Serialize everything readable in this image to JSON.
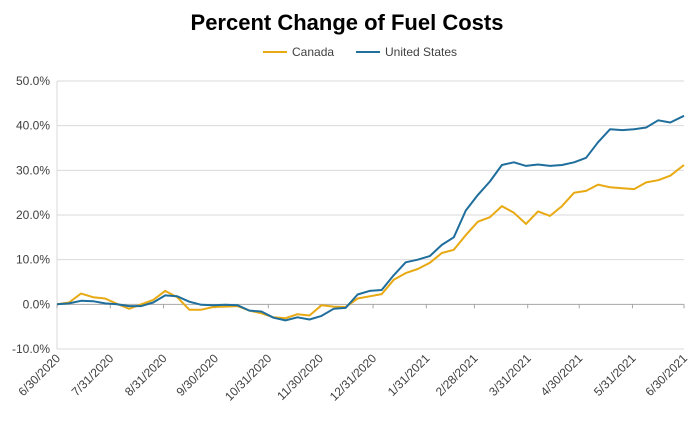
{
  "chart_data": {
    "type": "line",
    "title": "Percent Change of Fuel Costs",
    "xlabel": "",
    "ylabel": "",
    "ylim": [
      -10,
      50
    ],
    "y_ticks": [
      "-10.0%",
      "0.0%",
      "10.0%",
      "20.0%",
      "30.0%",
      "40.0%",
      "50.0%"
    ],
    "x_start": "2020-06-30",
    "x_end": "2021-06-30",
    "x_tick_labels": [
      "6/30/2020",
      "7/31/2020",
      "8/31/2020",
      "9/30/2020",
      "10/31/2020",
      "11/30/2020",
      "12/31/2020",
      "1/31/2021",
      "2/28/2021",
      "3/31/2021",
      "4/30/2021",
      "5/31/2021",
      "6/30/2021"
    ],
    "legend_position": "top",
    "grid": true,
    "series": [
      {
        "name": "Canada",
        "color": "#E8A912",
        "points": [
          [
            "2020-06-30",
            0.0
          ],
          [
            "2020-07-07",
            0.4
          ],
          [
            "2020-07-14",
            2.4
          ],
          [
            "2020-07-21",
            1.6
          ],
          [
            "2020-07-28",
            1.3
          ],
          [
            "2020-08-04",
            0.1
          ],
          [
            "2020-08-11",
            -1.0
          ],
          [
            "2020-08-18",
            0.0
          ],
          [
            "2020-08-25",
            1.0
          ],
          [
            "2020-09-01",
            3.0
          ],
          [
            "2020-09-08",
            1.6
          ],
          [
            "2020-09-15",
            -1.2
          ],
          [
            "2020-09-22",
            -1.2
          ],
          [
            "2020-09-29",
            -0.6
          ],
          [
            "2020-10-06",
            -0.5
          ],
          [
            "2020-10-13",
            -0.4
          ],
          [
            "2020-10-20",
            -1.4
          ],
          [
            "2020-10-27",
            -2.0
          ],
          [
            "2020-11-03",
            -2.9
          ],
          [
            "2020-11-10",
            -3.1
          ],
          [
            "2020-11-17",
            -2.2
          ],
          [
            "2020-11-24",
            -2.5
          ],
          [
            "2020-12-01",
            -0.2
          ],
          [
            "2020-12-08",
            -0.5
          ],
          [
            "2020-12-15",
            -0.6
          ],
          [
            "2020-12-22",
            1.3
          ],
          [
            "2020-12-29",
            1.8
          ],
          [
            "2021-01-05",
            2.3
          ],
          [
            "2021-01-12",
            5.5
          ],
          [
            "2021-01-19",
            7.0
          ],
          [
            "2021-01-26",
            7.9
          ],
          [
            "2021-02-02",
            9.3
          ],
          [
            "2021-02-09",
            11.5
          ],
          [
            "2021-02-16",
            12.2
          ],
          [
            "2021-02-23",
            15.5
          ],
          [
            "2021-03-02",
            18.5
          ],
          [
            "2021-03-09",
            19.5
          ],
          [
            "2021-03-16",
            22.0
          ],
          [
            "2021-03-23",
            20.5
          ],
          [
            "2021-03-30",
            18.0
          ],
          [
            "2021-04-06",
            20.8
          ],
          [
            "2021-04-13",
            19.8
          ],
          [
            "2021-04-20",
            22.0
          ],
          [
            "2021-04-27",
            25.0
          ],
          [
            "2021-05-04",
            25.4
          ],
          [
            "2021-05-11",
            26.8
          ],
          [
            "2021-05-18",
            26.2
          ],
          [
            "2021-05-25",
            26.0
          ],
          [
            "2021-06-01",
            25.8
          ],
          [
            "2021-06-08",
            27.3
          ],
          [
            "2021-06-15",
            27.8
          ],
          [
            "2021-06-22",
            28.8
          ],
          [
            "2021-06-30",
            31.2
          ]
        ]
      },
      {
        "name": "United States",
        "color": "#1F6E9C",
        "points": [
          [
            "2020-06-30",
            0.0
          ],
          [
            "2020-07-07",
            0.2
          ],
          [
            "2020-07-14",
            0.8
          ],
          [
            "2020-07-21",
            0.7
          ],
          [
            "2020-07-28",
            0.2
          ],
          [
            "2020-08-04",
            0.0
          ],
          [
            "2020-08-11",
            -0.4
          ],
          [
            "2020-08-18",
            -0.4
          ],
          [
            "2020-08-25",
            0.4
          ],
          [
            "2020-09-01",
            2.0
          ],
          [
            "2020-09-08",
            1.8
          ],
          [
            "2020-09-15",
            0.6
          ],
          [
            "2020-09-22",
            -0.1
          ],
          [
            "2020-09-29",
            -0.2
          ],
          [
            "2020-10-06",
            -0.1
          ],
          [
            "2020-10-13",
            -0.2
          ],
          [
            "2020-10-20",
            -1.4
          ],
          [
            "2020-10-27",
            -1.6
          ],
          [
            "2020-11-03",
            -3.0
          ],
          [
            "2020-11-10",
            -3.6
          ],
          [
            "2020-11-17",
            -2.9
          ],
          [
            "2020-11-24",
            -3.4
          ],
          [
            "2020-12-01",
            -2.6
          ],
          [
            "2020-12-08",
            -1.0
          ],
          [
            "2020-12-15",
            -0.8
          ],
          [
            "2020-12-22",
            2.2
          ],
          [
            "2020-12-29",
            3.0
          ],
          [
            "2021-01-05",
            3.2
          ],
          [
            "2021-01-12",
            6.5
          ],
          [
            "2021-01-19",
            9.4
          ],
          [
            "2021-01-26",
            10.0
          ],
          [
            "2021-02-02",
            10.8
          ],
          [
            "2021-02-09",
            13.3
          ],
          [
            "2021-02-16",
            15.0
          ],
          [
            "2021-02-23",
            21.0
          ],
          [
            "2021-03-02",
            24.5
          ],
          [
            "2021-03-09",
            27.5
          ],
          [
            "2021-03-16",
            31.2
          ],
          [
            "2021-03-23",
            31.8
          ],
          [
            "2021-03-30",
            31.0
          ],
          [
            "2021-04-06",
            31.3
          ],
          [
            "2021-04-13",
            31.0
          ],
          [
            "2021-04-20",
            31.2
          ],
          [
            "2021-04-27",
            31.8
          ],
          [
            "2021-05-04",
            32.8
          ],
          [
            "2021-05-11",
            36.3
          ],
          [
            "2021-05-18",
            39.2
          ],
          [
            "2021-05-25",
            39.0
          ],
          [
            "2021-06-01",
            39.2
          ],
          [
            "2021-06-08",
            39.6
          ],
          [
            "2021-06-15",
            41.2
          ],
          [
            "2021-06-22",
            40.7
          ],
          [
            "2021-06-30",
            42.2
          ]
        ]
      }
    ]
  }
}
